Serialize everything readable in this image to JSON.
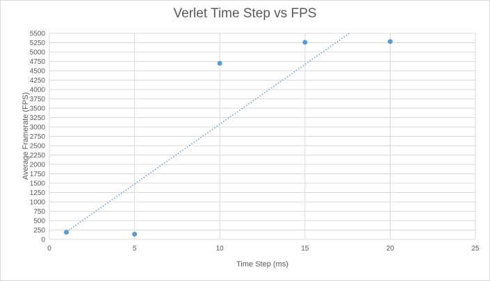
{
  "chart_data": {
    "type": "scatter",
    "title": "Verlet Time Step vs FPS",
    "xlabel": "Time Step (ms)",
    "ylabel": "Average Framerate  (FPS)",
    "xlim": [
      0,
      25
    ],
    "ylim": [
      0,
      5500
    ],
    "x_ticks": [
      0,
      5,
      10,
      15,
      20,
      25
    ],
    "y_ticks": [
      0,
      250,
      500,
      750,
      1000,
      1250,
      1500,
      1750,
      2000,
      2250,
      2500,
      2750,
      3000,
      3250,
      3500,
      3750,
      4000,
      4250,
      4500,
      4750,
      5000,
      5250,
      5500
    ],
    "grid": true,
    "series": [
      {
        "points": [
          {
            "x": 1,
            "y": 190
          },
          {
            "x": 5,
            "y": 140
          },
          {
            "x": 10,
            "y": 4700
          },
          {
            "x": 15,
            "y": 5260
          },
          {
            "x": 20,
            "y": 5280
          }
        ],
        "color": "#5b9bd5"
      }
    ],
    "trendline": {
      "type": "linear",
      "style": "dotted",
      "color": "#5b9bd5",
      "from": {
        "x": 1,
        "y": 200
      },
      "to": {
        "x": 17.6,
        "y": 5500
      }
    }
  },
  "colors": {
    "grid": "#d9d9d9",
    "text": "#595959",
    "marker": "#5b9bd5"
  }
}
